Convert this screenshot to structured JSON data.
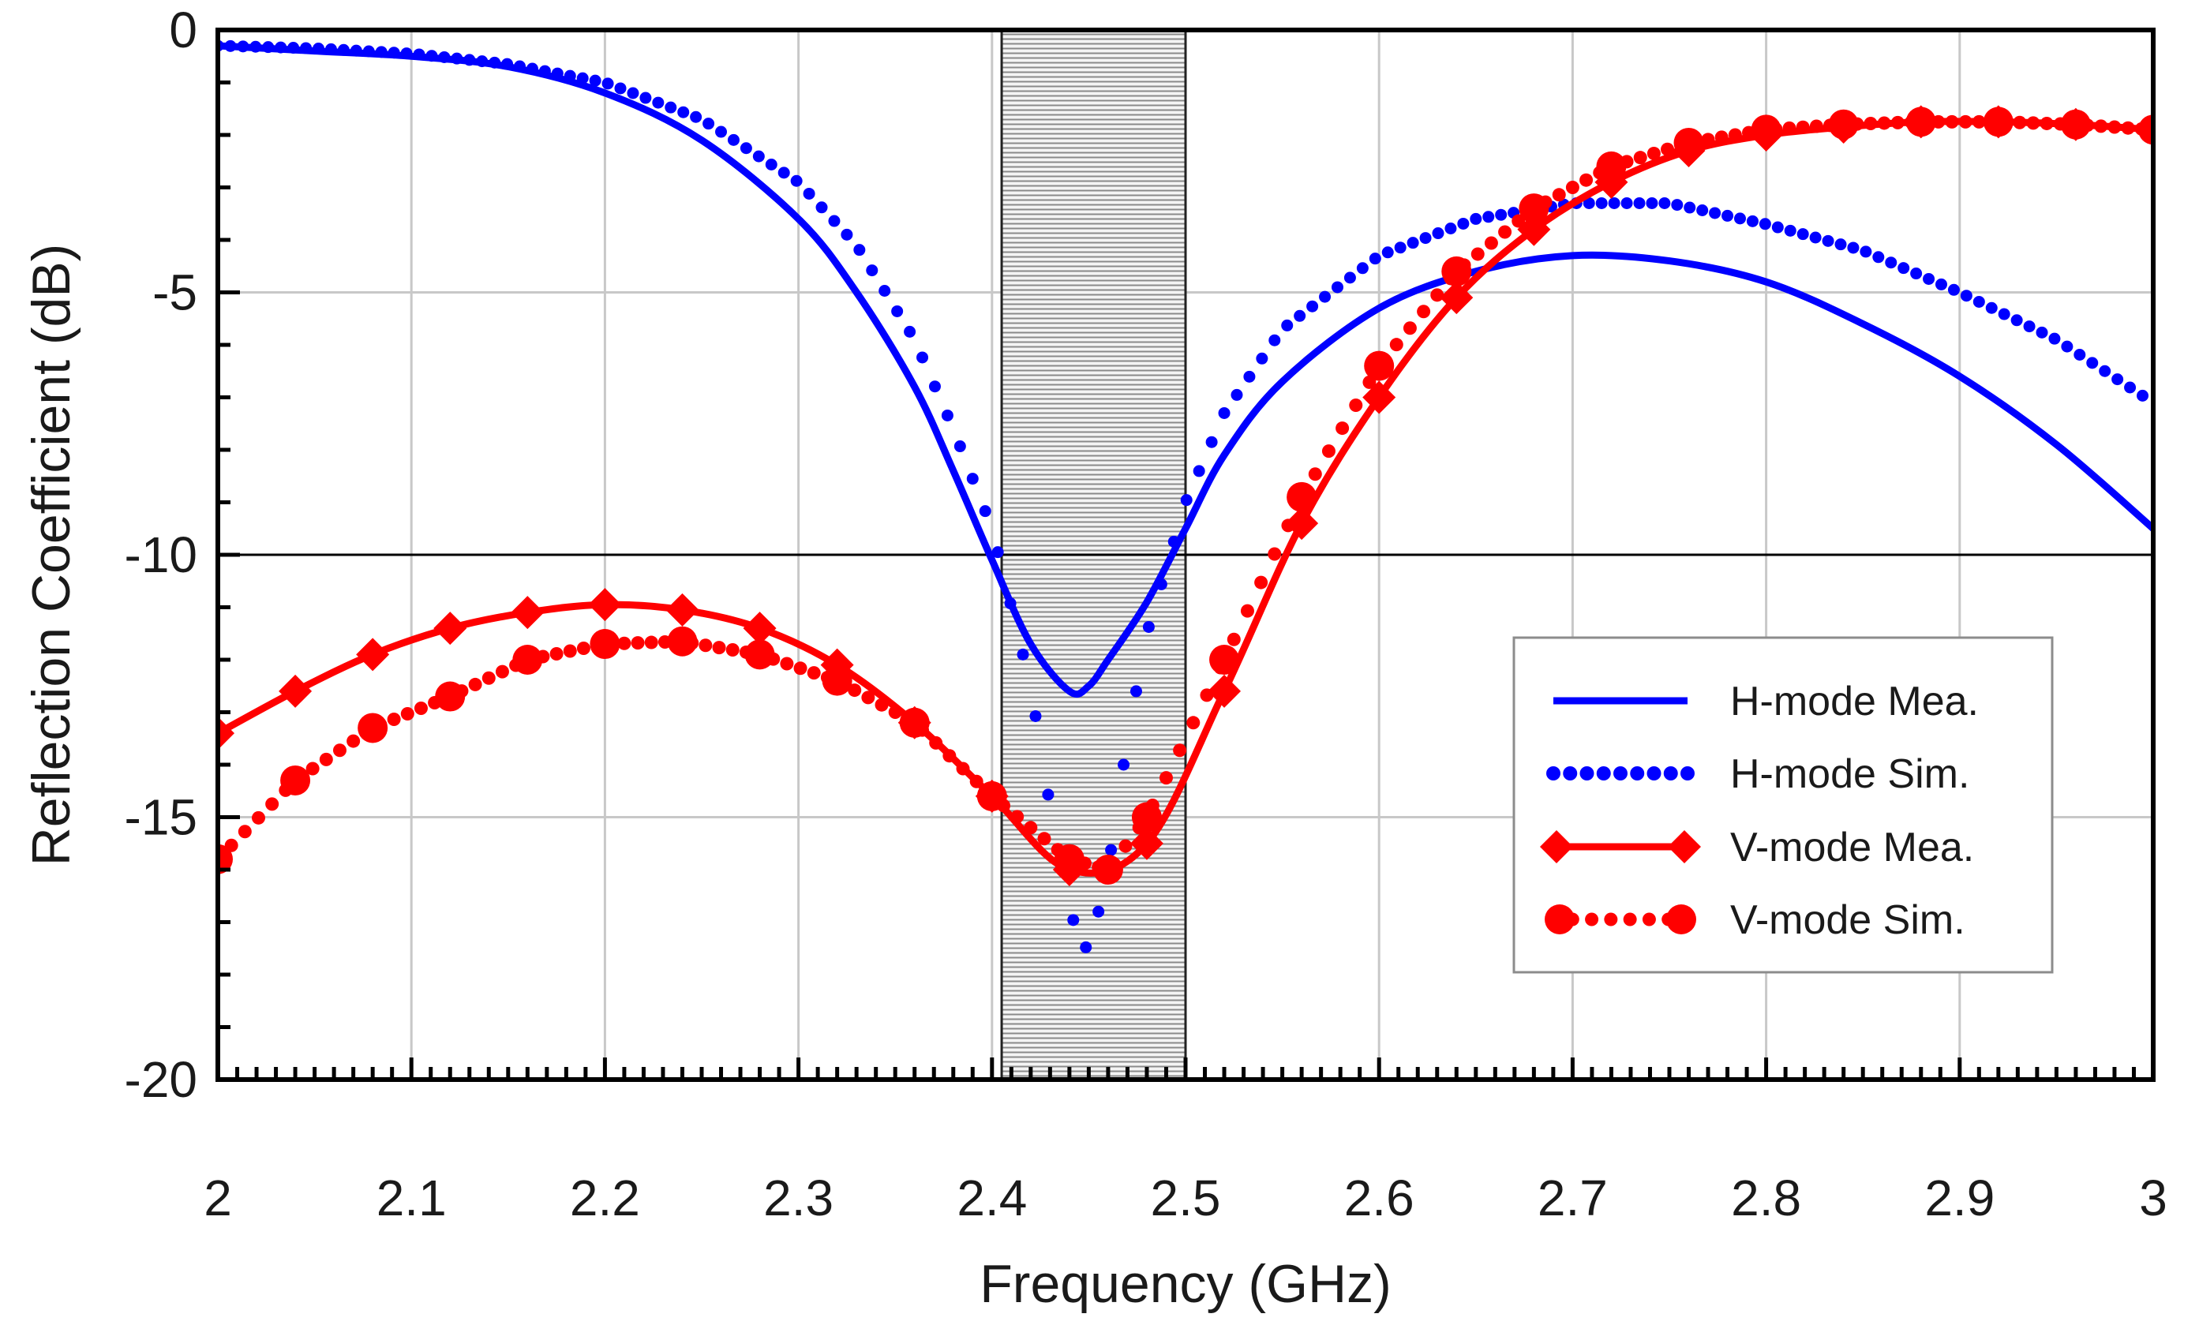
{
  "chart_data": {
    "type": "line",
    "title": "",
    "xlabel": "Frequency (GHz)",
    "ylabel": "Reflection Coefficient (dB)",
    "xlim": [
      2,
      3
    ],
    "ylim": [
      -20,
      0
    ],
    "x_ticks": [
      2,
      2.1,
      2.2,
      2.3,
      2.4,
      2.5,
      2.6,
      2.7,
      2.8,
      2.9,
      3
    ],
    "x_tick_labels": [
      "2",
      "2.1",
      "2.2",
      "2.3",
      "2.4",
      "2.5",
      "2.6",
      "2.7",
      "2.8",
      "2.9",
      "3"
    ],
    "y_ticks": [
      0,
      -5,
      -10,
      -15,
      -20
    ],
    "y_tick_labels": [
      "0",
      "-5",
      "-10",
      "-15",
      "-20"
    ],
    "grid": true,
    "reference_line": {
      "y": -10
    },
    "shaded_band": {
      "x_start": 2.405,
      "x_end": 2.5
    },
    "legend_position": "right",
    "series": [
      {
        "name": "H-mode Mea.",
        "style": "solid",
        "marker": "none",
        "color": "#0000ff",
        "x": [
          2.0,
          2.05,
          2.1,
          2.15,
          2.2,
          2.25,
          2.3,
          2.33,
          2.36,
          2.38,
          2.4,
          2.42,
          2.44,
          2.45,
          2.46,
          2.48,
          2.5,
          2.52,
          2.55,
          2.6,
          2.65,
          2.7,
          2.75,
          2.8,
          2.85,
          2.9,
          2.95,
          3.0
        ],
        "y": [
          -0.3,
          -0.4,
          -0.5,
          -0.7,
          -1.2,
          -2.1,
          -3.6,
          -5.0,
          -6.8,
          -8.4,
          -10.1,
          -11.7,
          -12.6,
          -12.5,
          -12.0,
          -10.9,
          -9.5,
          -8.1,
          -6.7,
          -5.3,
          -4.6,
          -4.3,
          -4.4,
          -4.8,
          -5.6,
          -6.6,
          -7.9,
          -9.5
        ]
      },
      {
        "name": "H-mode Sim.",
        "style": "dotted",
        "marker": "dot",
        "color": "#0000ff",
        "x": [
          2.0,
          2.05,
          2.1,
          2.15,
          2.2,
          2.25,
          2.3,
          2.33,
          2.36,
          2.38,
          2.4,
          2.42,
          2.43,
          2.44,
          2.45,
          2.46,
          2.47,
          2.48,
          2.5,
          2.52,
          2.55,
          2.6,
          2.65,
          2.7,
          2.75,
          2.8,
          2.85,
          2.9,
          2.95,
          3.0
        ],
        "y": [
          -0.3,
          -0.35,
          -0.45,
          -0.65,
          -1.0,
          -1.7,
          -2.9,
          -4.1,
          -5.9,
          -7.6,
          -9.5,
          -12.5,
          -14.8,
          -16.8,
          -17.6,
          -16.0,
          -13.5,
          -11.5,
          -9.0,
          -7.3,
          -5.7,
          -4.3,
          -3.6,
          -3.3,
          -3.3,
          -3.7,
          -4.2,
          -5.0,
          -5.9,
          -7.1
        ]
      },
      {
        "name": "V-mode Mea.",
        "style": "solid",
        "marker": "diamond",
        "color": "#ff0000",
        "x": [
          2.0,
          2.04,
          2.08,
          2.12,
          2.16,
          2.2,
          2.24,
          2.28,
          2.32,
          2.36,
          2.4,
          2.44,
          2.48,
          2.52,
          2.56,
          2.6,
          2.64,
          2.68,
          2.72,
          2.76,
          2.8,
          2.84,
          2.88,
          2.92,
          2.96,
          3.0
        ],
        "y": [
          -13.4,
          -12.6,
          -11.9,
          -11.4,
          -11.1,
          -10.95,
          -11.05,
          -11.4,
          -12.1,
          -13.2,
          -14.6,
          -16.0,
          -15.5,
          -12.6,
          -9.4,
          -7.0,
          -5.1,
          -3.8,
          -2.9,
          -2.3,
          -2.0,
          -1.85,
          -1.75,
          -1.75,
          -1.8,
          -1.9
        ]
      },
      {
        "name": "V-mode Sim.",
        "style": "dotted",
        "marker": "circle",
        "color": "#ff0000",
        "x": [
          2.0,
          2.04,
          2.08,
          2.12,
          2.16,
          2.2,
          2.24,
          2.28,
          2.32,
          2.36,
          2.4,
          2.44,
          2.46,
          2.48,
          2.52,
          2.56,
          2.6,
          2.64,
          2.68,
          2.72,
          2.76,
          2.8,
          2.84,
          2.88,
          2.92,
          2.96,
          3.0
        ],
        "y": [
          -15.8,
          -14.3,
          -13.3,
          -12.7,
          -12.0,
          -11.7,
          -11.65,
          -11.9,
          -12.4,
          -13.2,
          -14.6,
          -15.8,
          -16.0,
          -15.0,
          -12.0,
          -8.9,
          -6.4,
          -4.6,
          -3.4,
          -2.6,
          -2.15,
          -1.9,
          -1.8,
          -1.75,
          -1.75,
          -1.8,
          -1.9
        ]
      }
    ]
  }
}
